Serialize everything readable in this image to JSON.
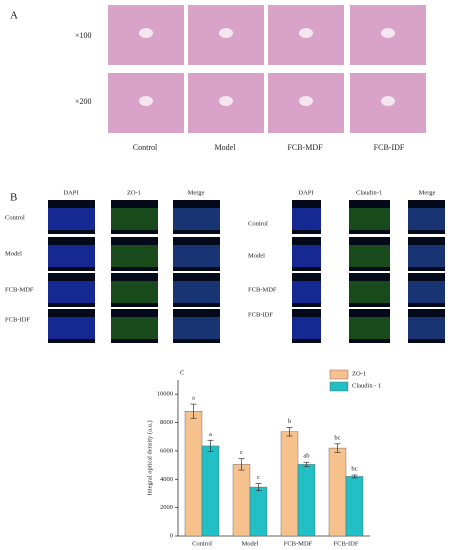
{
  "panel_a": {
    "label": "A",
    "row_labels": [
      "×100",
      "×200"
    ],
    "column_labels": [
      "Control",
      "Model",
      "FCB-MDF",
      "FCB-IDF"
    ]
  },
  "panel_b": {
    "label": "B",
    "left": {
      "columns": [
        "DAPI",
        "ZO-1",
        "Merge"
      ],
      "rows": [
        "Control",
        "Model",
        "FCB-MDF",
        "FCB-IDF"
      ]
    },
    "right": {
      "columns": [
        "DAPI",
        "Claudin-1",
        "Merge"
      ],
      "rows": [
        "Control",
        "Model",
        "FCB-MDF",
        "FCB-IDF"
      ]
    }
  },
  "chart_data": {
    "type": "bar",
    "label": "C",
    "y_label": "Integral optical density  (a.u.)",
    "categories": [
      "Control",
      "Model",
      "FCB-MDF",
      "FCB-IDF"
    ],
    "series": [
      {
        "name": "ZO-1",
        "color": "#f6c18d",
        "values": [
          8800,
          5050,
          7350,
          6200
        ],
        "errors": [
          500,
          400,
          300,
          300
        ],
        "letters": [
          "a",
          "c",
          "b",
          "bc"
        ]
      },
      {
        "name": "Claudin - 1",
        "color": "#22c0c4",
        "values": [
          6350,
          3450,
          5050,
          4200
        ],
        "errors": [
          400,
          250,
          150,
          100
        ],
        "letters": [
          "a",
          "c",
          "ab",
          "bc"
        ]
      }
    ],
    "ylim": [
      0,
      11000
    ],
    "yticks": [
      0,
      2000,
      4000,
      6000,
      8000,
      10000
    ],
    "legend": "upper right"
  }
}
